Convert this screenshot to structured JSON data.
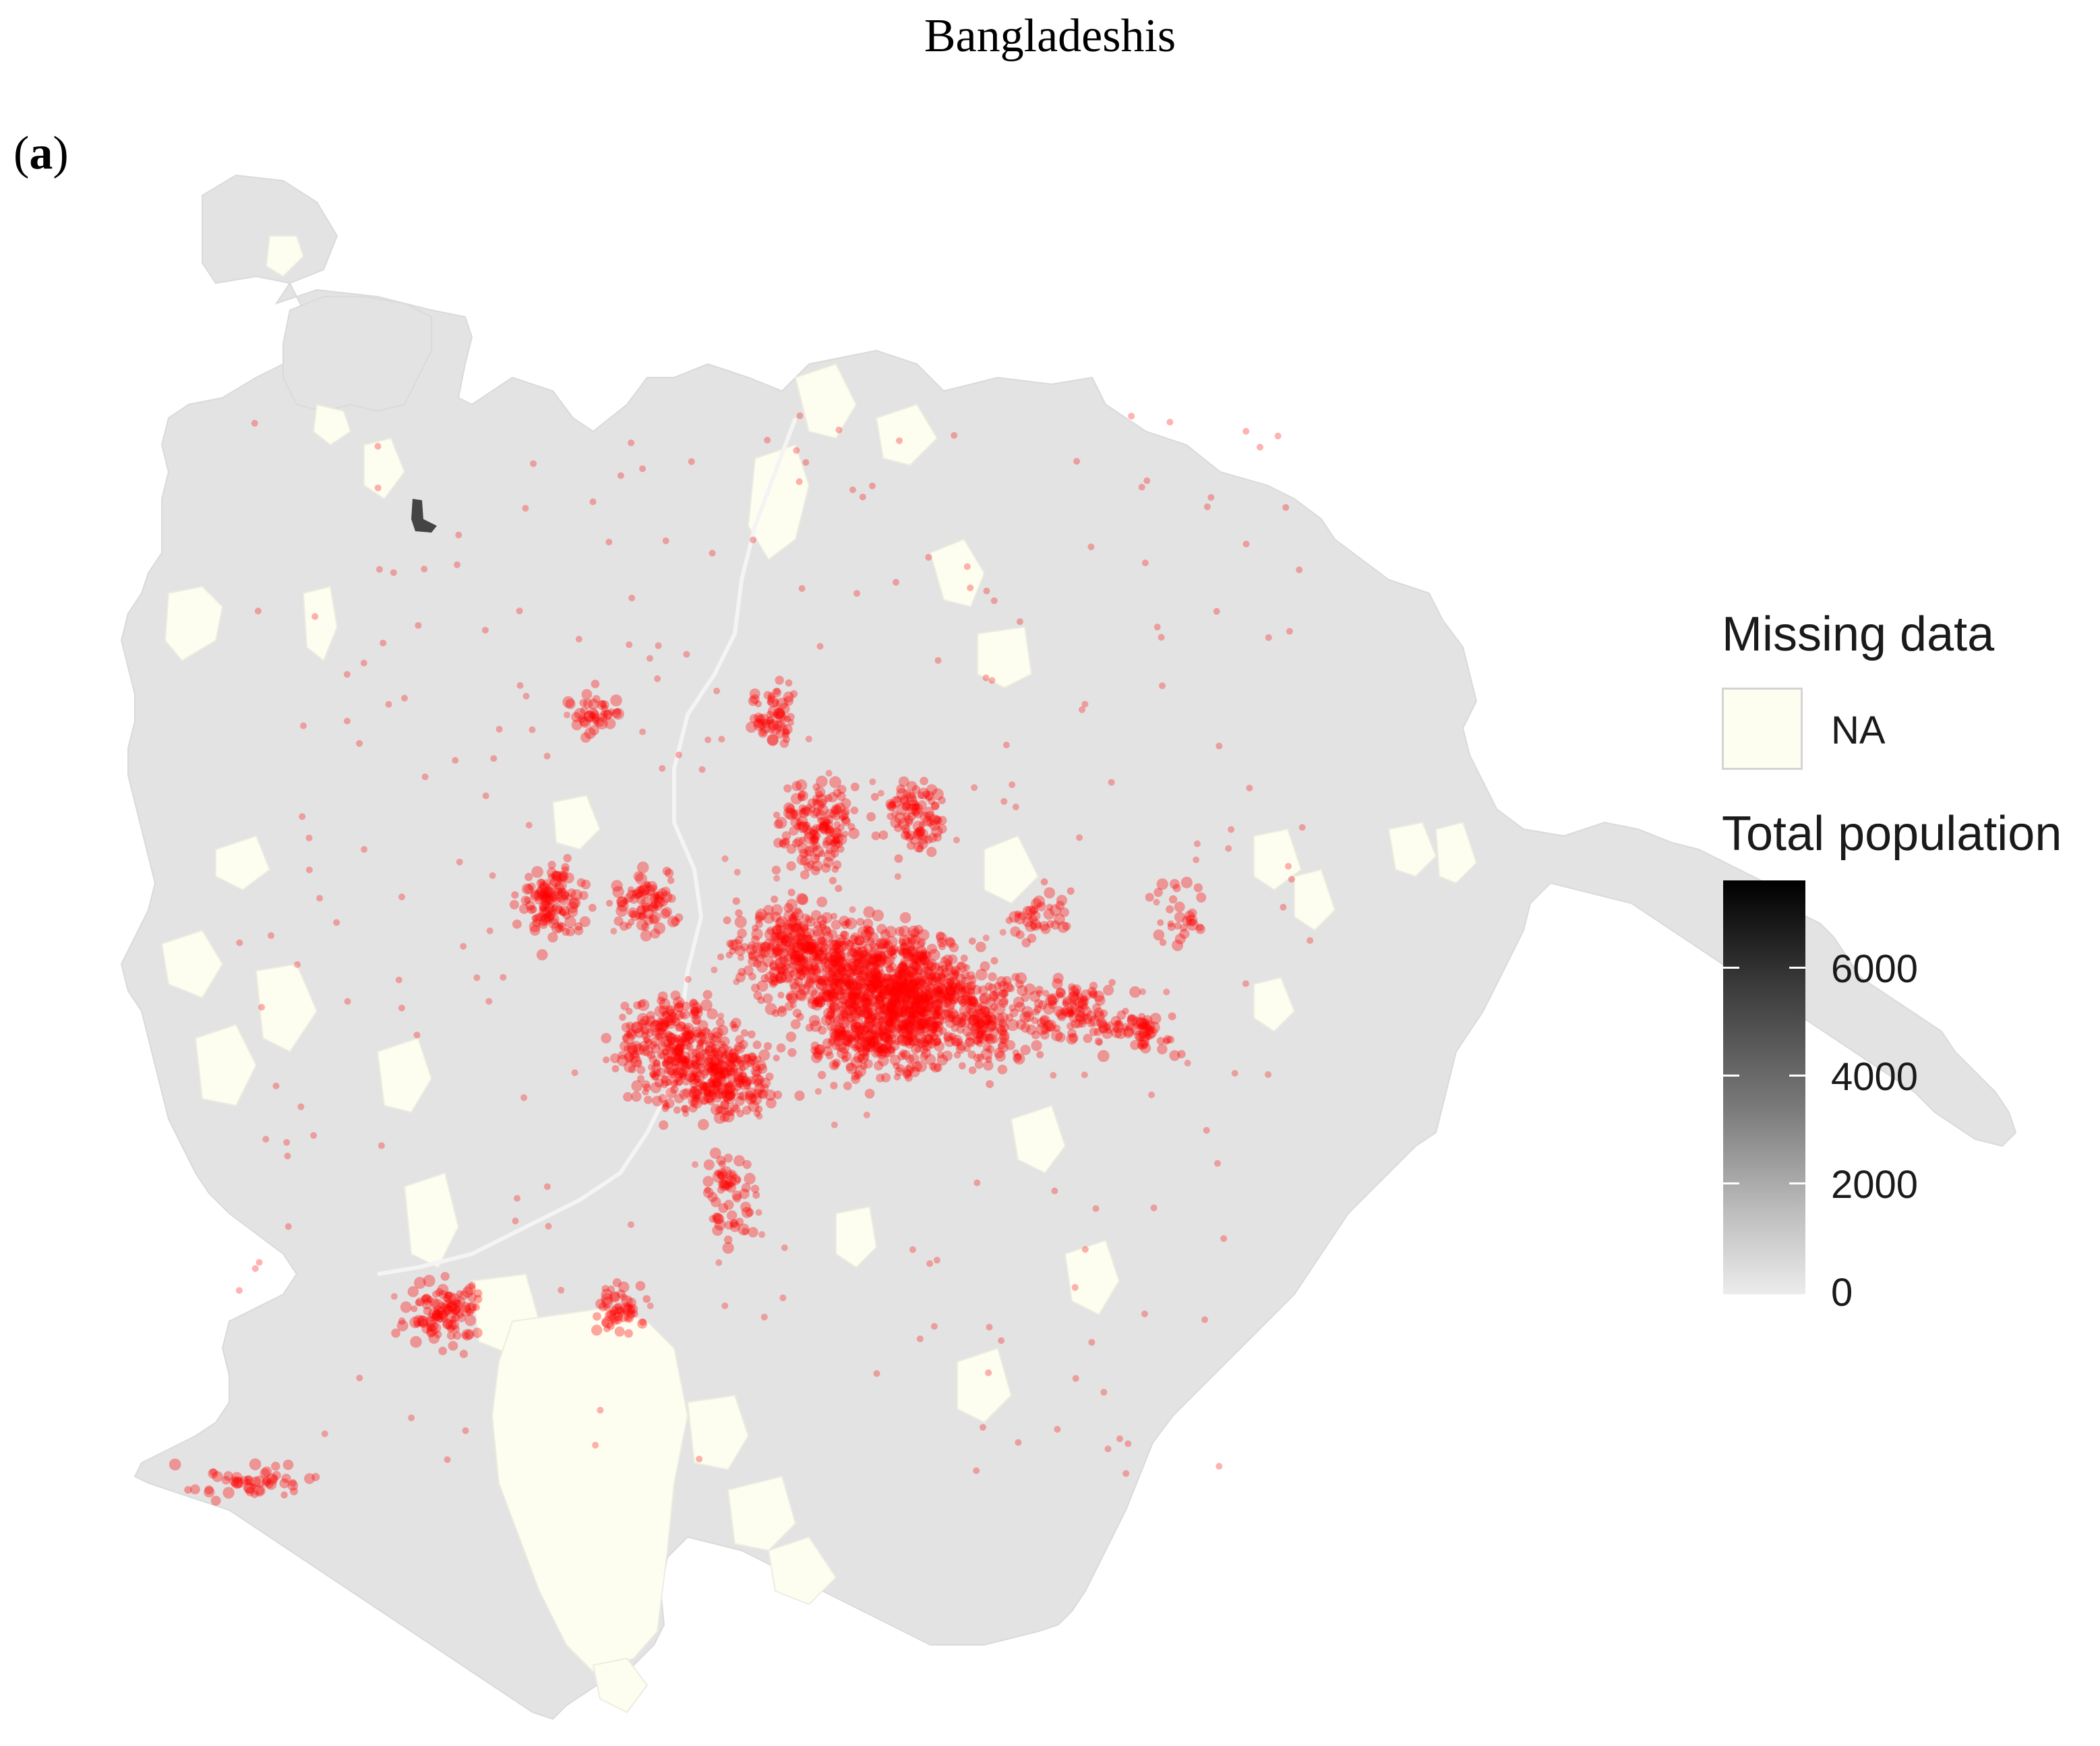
{
  "title": "Bangladeshis",
  "panel_label": "a",
  "legend": {
    "missing_title": "Missing data",
    "missing_key_label": "NA",
    "population_title": "Total population",
    "population_ticks": [
      "6000",
      "4000",
      "2000",
      "0"
    ],
    "population_max": 7600
  },
  "colors": {
    "district_fill": "#e3e3e3",
    "missing_fill": "#fdfdf0",
    "points": "#ff0000",
    "colorbar_high": "#000000",
    "colorbar_low": "#ececec"
  }
}
